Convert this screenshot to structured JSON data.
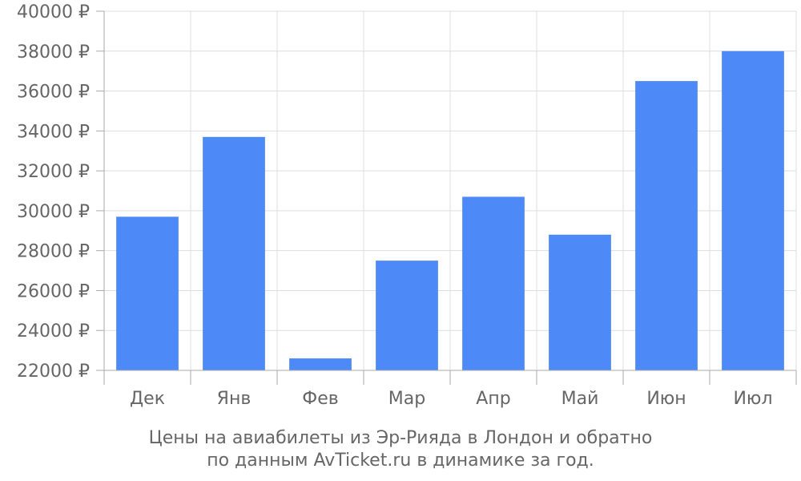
{
  "chart_data": {
    "type": "bar",
    "categories": [
      "Дек",
      "Янв",
      "Фев",
      "Мар",
      "Апр",
      "Май",
      "Июн",
      "Июл"
    ],
    "values": [
      29700,
      33700,
      22600,
      27500,
      30700,
      28800,
      36500,
      38000
    ],
    "ylim": [
      22000,
      40000
    ],
    "yticks": [
      22000,
      24000,
      26000,
      28000,
      30000,
      32000,
      34000,
      36000,
      38000,
      40000
    ],
    "y_unit": "₽",
    "grid": true,
    "bar_color": "#4d8af8",
    "grid_color": "#dddddd",
    "axis_color": "#aaaaaa",
    "caption": [
      "Цены на авиабилеты из Эр-Рияда в Лондон и обратно",
      "по данным AvTicket.ru в динамике за год."
    ]
  }
}
